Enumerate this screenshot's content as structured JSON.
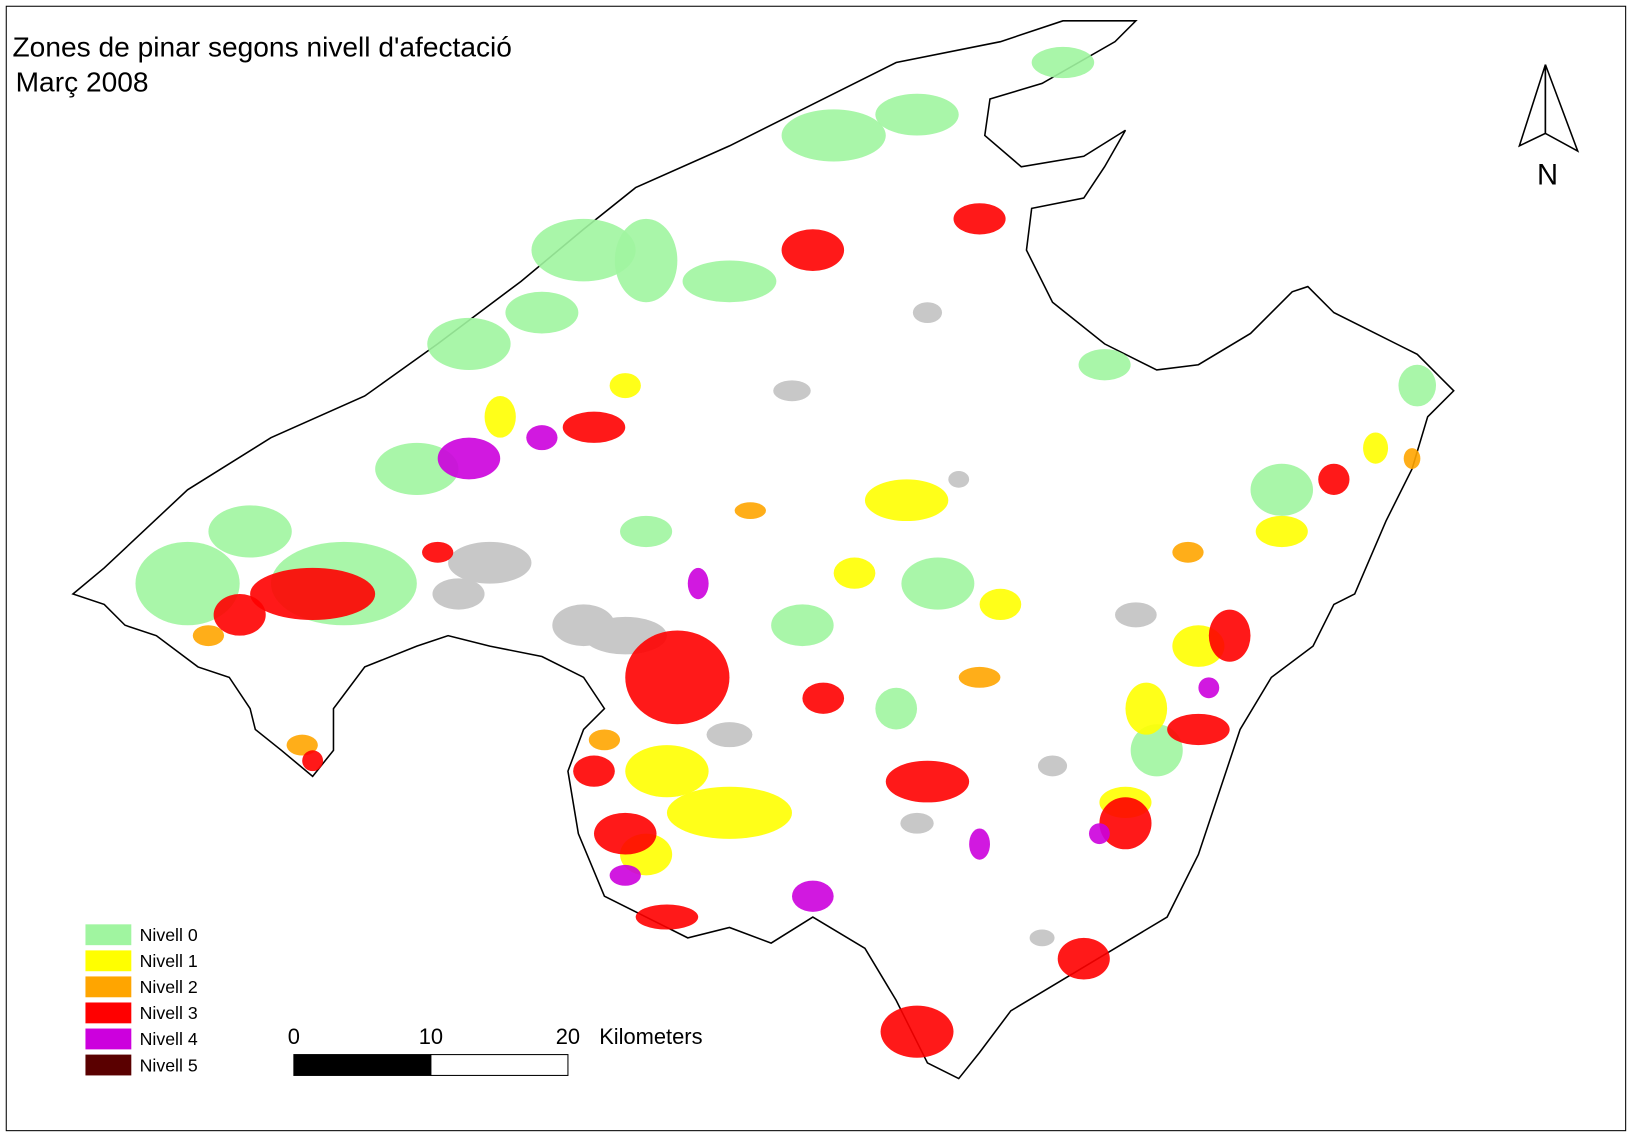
{
  "title": "Zones de pinar segons nivell d'afectació",
  "subtitle": "Març 2008",
  "north_label": "N",
  "legend": [
    {
      "label": "Nivell 0",
      "color": "#a0f5a0"
    },
    {
      "label": "Nivell 1",
      "color": "#ffff00"
    },
    {
      "label": "Nivell 2",
      "color": "#ffa500"
    },
    {
      "label": "Nivell 3",
      "color": "#ff0000"
    },
    {
      "label": "Nivell 4",
      "color": "#cc00dd"
    },
    {
      "label": "Nivell 5",
      "color": "#5a0000"
    }
  ],
  "scale_bar": {
    "ticks": [
      0,
      10,
      20
    ],
    "unit": "Kilometers"
  }
}
